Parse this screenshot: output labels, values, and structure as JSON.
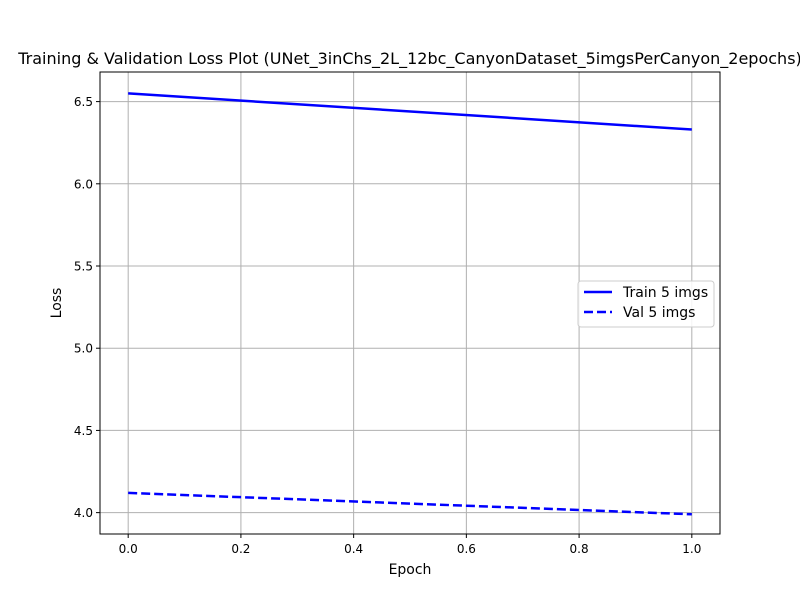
{
  "chart_data": {
    "type": "line",
    "title": "Training & Validation Loss Plot (UNet_3inChs_2L_12bc_CanyonDataset_5imgsPerCanyon_2epochs)",
    "xlabel": "Epoch",
    "ylabel": "Loss",
    "xlim": [
      -0.05,
      1.05
    ],
    "ylim": [
      3.87,
      6.68
    ],
    "xticks": [
      0.0,
      0.2,
      0.4,
      0.6,
      0.8,
      1.0
    ],
    "xtick_labels": [
      "0.0",
      "0.2",
      "0.4",
      "0.6",
      "0.8",
      "1.0"
    ],
    "yticks": [
      4.0,
      4.5,
      5.0,
      5.5,
      6.0,
      6.5
    ],
    "ytick_labels": [
      "4.0",
      "4.5",
      "5.0",
      "5.5",
      "6.0",
      "6.5"
    ],
    "grid": true,
    "legend_position": "center-right",
    "series": [
      {
        "name": "Train 5 imgs",
        "x": [
          0,
          1
        ],
        "y": [
          6.55,
          6.33
        ],
        "color": "#0000ff",
        "style": "solid"
      },
      {
        "name": "Val 5 imgs",
        "x": [
          0,
          1
        ],
        "y": [
          4.12,
          3.99
        ],
        "color": "#0000ff",
        "style": "dashed"
      }
    ]
  }
}
